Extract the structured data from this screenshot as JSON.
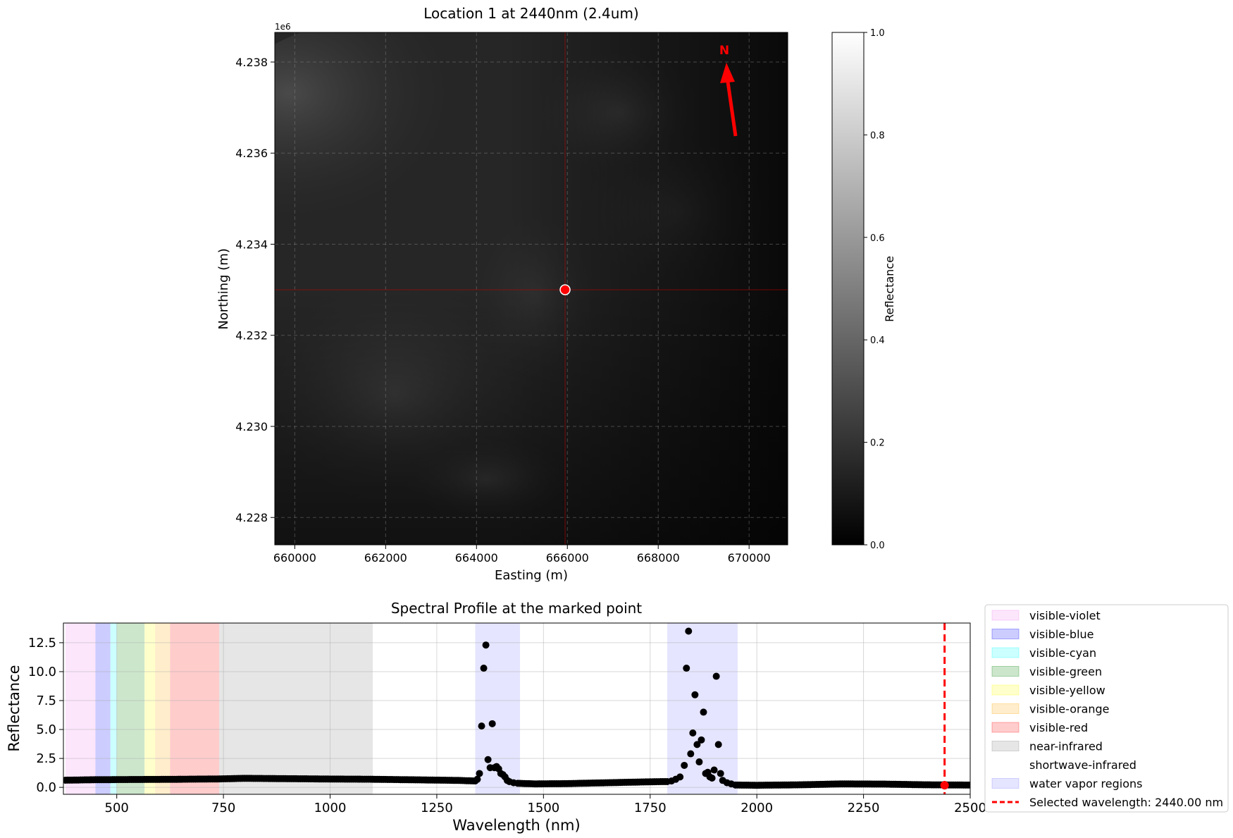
{
  "chart_data": [
    {
      "type": "heatmap",
      "title": "Location 1 at 2440nm (2.4um)",
      "xlabel": "Easting (m)",
      "ylabel": "Northing (m)",
      "y_offset_label": "1e6",
      "xlim": [
        659560,
        670850
      ],
      "ylim": [
        4227.4,
        4238.65
      ],
      "xticks": [
        660000,
        662000,
        664000,
        666000,
        668000,
        670000
      ],
      "xtick_labels": [
        "660000",
        "662000",
        "664000",
        "666000",
        "668000",
        "670000"
      ],
      "yticks": [
        4228,
        4230,
        4232,
        4234,
        4236,
        4238
      ],
      "ytick_labels": [
        "4.228",
        "4.230",
        "4.232",
        "4.234",
        "4.236",
        "4.238"
      ],
      "grid": true,
      "marked_point": {
        "easting": 665950,
        "northing": 4233.0
      },
      "north_arrow_label": "N",
      "colorbar": {
        "label": "Reflectance",
        "range": [
          0.0,
          1.0
        ],
        "ticks": [
          0.0,
          0.2,
          0.4,
          0.6,
          0.8,
          1.0
        ],
        "tick_labels": [
          "0.0",
          "0.2",
          "0.4",
          "0.6",
          "0.8",
          "1.0"
        ],
        "colormap": "gray"
      }
    },
    {
      "type": "scatter",
      "title": "Spectral Profile at the marked point",
      "xlabel": "Wavelength (nm)",
      "ylabel": "Reflectance",
      "xlim": [
        375,
        2500
      ],
      "ylim": [
        -0.6,
        14.2
      ],
      "xticks": [
        500,
        750,
        1000,
        1250,
        1500,
        1750,
        2000,
        2250,
        2500
      ],
      "xtick_labels": [
        "500",
        "750",
        "1000",
        "1250",
        "1500",
        "1750",
        "2000",
        "2250",
        "2500"
      ],
      "yticks": [
        0.0,
        2.5,
        5.0,
        7.5,
        10.0,
        12.5
      ],
      "ytick_labels": [
        "0.0",
        "2.5",
        "5.0",
        "7.5",
        "10.0",
        "12.5"
      ],
      "grid": true,
      "legend_position": "outside right",
      "regions": [
        {
          "name": "visible-violet",
          "from": 380,
          "to": 450,
          "color": "#ee82ee",
          "alpha": 0.2
        },
        {
          "name": "visible-blue",
          "from": 450,
          "to": 485,
          "color": "#0000ff",
          "alpha": 0.2
        },
        {
          "name": "visible-cyan",
          "from": 485,
          "to": 500,
          "color": "#00ffff",
          "alpha": 0.2
        },
        {
          "name": "visible-green",
          "from": 500,
          "to": 565,
          "color": "#008000",
          "alpha": 0.2
        },
        {
          "name": "visible-yellow",
          "from": 565,
          "to": 590,
          "color": "#ffff00",
          "alpha": 0.2
        },
        {
          "name": "visible-orange",
          "from": 590,
          "to": 625,
          "color": "#ffa500",
          "alpha": 0.2
        },
        {
          "name": "visible-red",
          "from": 625,
          "to": 740,
          "color": "#ff0000",
          "alpha": 0.2
        },
        {
          "name": "near-infrared",
          "from": 740,
          "to": 1100,
          "color": "#808080",
          "alpha": 0.2
        },
        {
          "name": "shortwave-infrared",
          "from": 1100,
          "to": 2500,
          "color": "#ffffff",
          "alpha": 0.0
        },
        {
          "name": "water vapor regions",
          "from": 1340,
          "to": 1445,
          "color": "#0000ff",
          "alpha": 0.1
        },
        {
          "name": "water vapor regions",
          "from": 1790,
          "to": 1955,
          "color": "#0000ff",
          "alpha": 0.1
        }
      ],
      "baseline": [
        [
          380,
          0.62
        ],
        [
          450,
          0.66
        ],
        [
          550,
          0.68
        ],
        [
          650,
          0.7
        ],
        [
          740,
          0.73
        ],
        [
          800,
          0.78
        ],
        [
          900,
          0.75
        ],
        [
          1000,
          0.72
        ],
        [
          1100,
          0.7
        ],
        [
          1200,
          0.65
        ],
        [
          1300,
          0.6
        ],
        [
          1340,
          0.55
        ]
      ],
      "baseline_2": [
        [
          1440,
          0.35
        ],
        [
          1480,
          0.3
        ],
        [
          1550,
          0.32
        ],
        [
          1650,
          0.4
        ],
        [
          1750,
          0.48
        ],
        [
          1790,
          0.5
        ]
      ],
      "baseline_3": [
        [
          1950,
          0.2
        ],
        [
          2000,
          0.18
        ],
        [
          2100,
          0.22
        ],
        [
          2200,
          0.3
        ],
        [
          2300,
          0.28
        ],
        [
          2400,
          0.22
        ],
        [
          2500,
          0.2
        ]
      ],
      "points": [
        [
          1345,
          0.7
        ],
        [
          1350,
          1.2
        ],
        [
          1355,
          5.3
        ],
        [
          1360,
          10.3
        ],
        [
          1365,
          12.3
        ],
        [
          1370,
          2.4
        ],
        [
          1375,
          1.7
        ],
        [
          1380,
          5.5
        ],
        [
          1385,
          1.7
        ],
        [
          1390,
          1.8
        ],
        [
          1395,
          1.6
        ],
        [
          1400,
          1.2
        ],
        [
          1405,
          1.1
        ],
        [
          1410,
          0.9
        ],
        [
          1415,
          0.6
        ],
        [
          1420,
          0.5
        ],
        [
          1430,
          0.4
        ],
        [
          1800,
          0.55
        ],
        [
          1810,
          0.7
        ],
        [
          1820,
          0.9
        ],
        [
          1830,
          1.9
        ],
        [
          1835,
          10.3
        ],
        [
          1840,
          13.5
        ],
        [
          1845,
          2.9
        ],
        [
          1850,
          4.7
        ],
        [
          1855,
          8.0
        ],
        [
          1860,
          3.7
        ],
        [
          1865,
          2.2
        ],
        [
          1870,
          4.1
        ],
        [
          1875,
          6.5
        ],
        [
          1880,
          1.2
        ],
        [
          1885,
          1.3
        ],
        [
          1890,
          0.9
        ],
        [
          1895,
          0.8
        ],
        [
          1900,
          1.5
        ],
        [
          1905,
          9.6
        ],
        [
          1910,
          3.7
        ],
        [
          1915,
          1.2
        ],
        [
          1920,
          0.6
        ],
        [
          1930,
          0.4
        ],
        [
          1940,
          0.3
        ]
      ],
      "selected_wavelength": {
        "value": 2440,
        "reflectance": 0.18
      },
      "legend": [
        {
          "label": "visible-violet",
          "color": "#ee82ee",
          "alpha": 0.2,
          "kind": "patch"
        },
        {
          "label": "visible-blue",
          "color": "#0000ff",
          "alpha": 0.2,
          "kind": "patch"
        },
        {
          "label": "visible-cyan",
          "color": "#00ffff",
          "alpha": 0.2,
          "kind": "patch"
        },
        {
          "label": "visible-green",
          "color": "#008000",
          "alpha": 0.2,
          "kind": "patch"
        },
        {
          "label": "visible-yellow",
          "color": "#ffff00",
          "alpha": 0.2,
          "kind": "patch"
        },
        {
          "label": "visible-orange",
          "color": "#ffa500",
          "alpha": 0.2,
          "kind": "patch"
        },
        {
          "label": "visible-red",
          "color": "#ff0000",
          "alpha": 0.2,
          "kind": "patch"
        },
        {
          "label": "near-infrared",
          "color": "#808080",
          "alpha": 0.2,
          "kind": "patch"
        },
        {
          "label": "shortwave-infrared",
          "color": "#ffffff",
          "alpha": 0.0,
          "kind": "patch"
        },
        {
          "label": "water vapor regions",
          "color": "#0000ff",
          "alpha": 0.1,
          "kind": "patch"
        },
        {
          "label": "Selected wavelength: 2440.00 nm",
          "color": "#ff0000",
          "alpha": 1.0,
          "kind": "dashed-line"
        }
      ]
    }
  ]
}
